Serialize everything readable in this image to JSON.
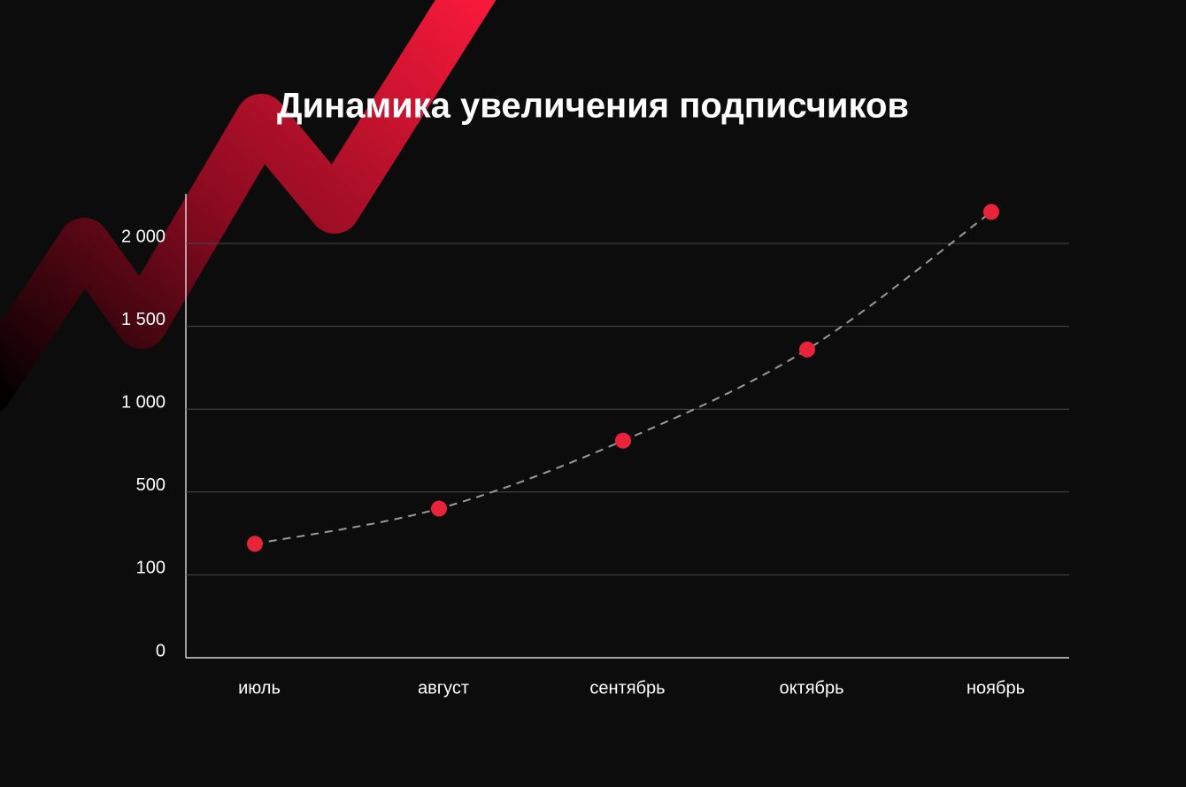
{
  "chart_data": {
    "type": "line",
    "title": "Динамика увеличения подписчиков",
    "scale": "piecewise",
    "categories": [
      "июль",
      "август",
      "сентябрь",
      "октябрь",
      "ноябрь"
    ],
    "values": [
      250,
      420,
      810,
      1360,
      2190
    ],
    "color": "#e8233a",
    "line_color": "#9a9a9a",
    "line_style": "dashed",
    "ylim": [
      0,
      2300
    ],
    "yticks": [
      0,
      100,
      500,
      {
        "value": 1000,
        "label": "1 000"
      },
      {
        "value": 1500,
        "label": "1 500"
      },
      {
        "value": 2000,
        "label": "2 000"
      }
    ],
    "grid": true
  }
}
